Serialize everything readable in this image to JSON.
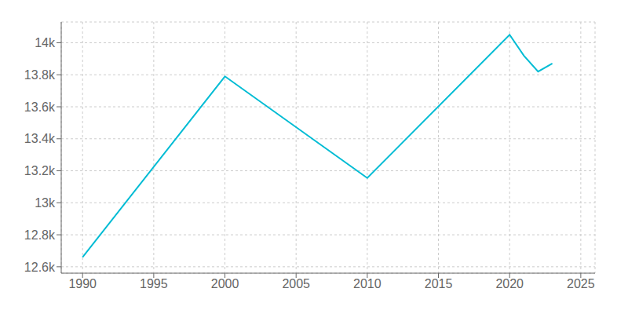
{
  "chart_data": {
    "type": "line",
    "x": [
      1990,
      2000,
      2010,
      2020,
      2021,
      2022,
      2023
    ],
    "values": [
      12660,
      13790,
      13155,
      14050,
      13920,
      13820,
      13870
    ],
    "color": "#00BCD4",
    "xlim": [
      1988.5,
      2026
    ],
    "ylim": [
      12560,
      14130
    ],
    "xticks": [
      1990,
      1995,
      2000,
      2005,
      2010,
      2015,
      2020,
      2025
    ],
    "yticks": [
      {
        "value": 12600,
        "label": "12.6k"
      },
      {
        "value": 12800,
        "label": "12.8k"
      },
      {
        "value": 13000,
        "label": "13k"
      },
      {
        "value": 13200,
        "label": "13.2k"
      },
      {
        "value": 13400,
        "label": "13.4k"
      },
      {
        "value": 13600,
        "label": "13.6k"
      },
      {
        "value": 13800,
        "label": "13.8k"
      },
      {
        "value": 14000,
        "label": "14k"
      }
    ],
    "grid": true
  }
}
